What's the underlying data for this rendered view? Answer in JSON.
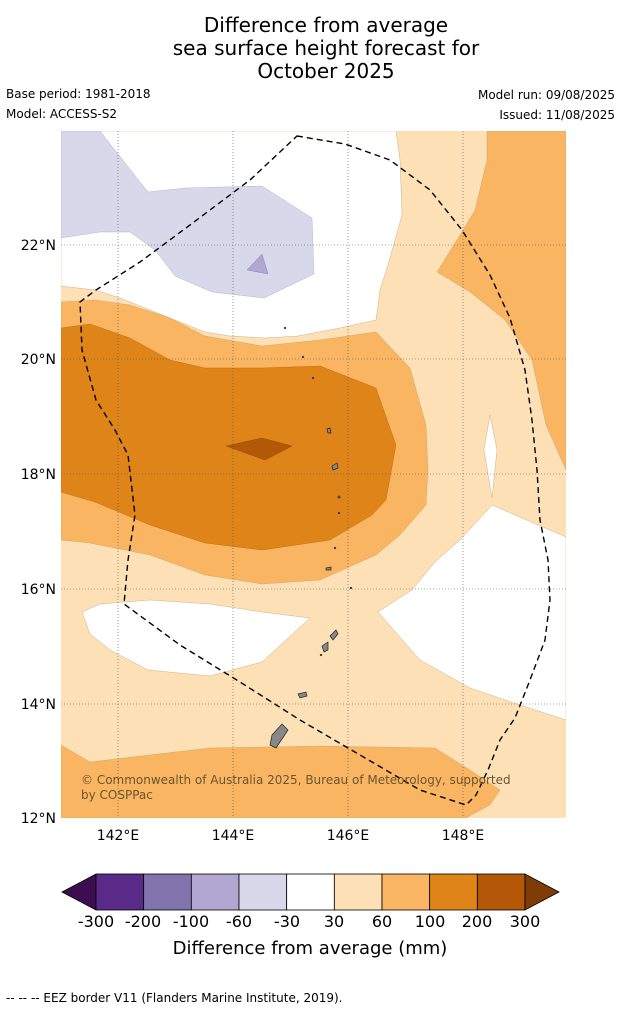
{
  "title": {
    "line1": "Difference from average",
    "line2": "sea surface height forecast for",
    "line3": "October 2025"
  },
  "meta": {
    "base_period": "Base period: 1981-2018",
    "model": "Model: ACCESS-S2",
    "model_run": "Model run: 09/08/2025",
    "issued": "Issued: 11/08/2025"
  },
  "map": {
    "lat_ticks": [
      "22°N",
      "20°N",
      "18°N",
      "16°N",
      "14°N",
      "12°N"
    ],
    "lon_ticks": [
      "142°E",
      "144°E",
      "146°E",
      "148°E"
    ],
    "extent": {
      "lon": [
        141,
        149.8
      ],
      "lat": [
        12,
        24
      ]
    },
    "copyright_line1": "© Commonwealth of Australia 2025, Bureau of Meteorology, supported",
    "copyright_line2": "by COSPPac"
  },
  "colorbar": {
    "ticks": [
      "-300",
      "-200",
      "-100",
      "-60",
      "-30",
      "30",
      "60",
      "100",
      "200",
      "300"
    ],
    "label": "Difference from average (mm)",
    "colors": [
      "#3b0f4f",
      "#5a2a89",
      "#8373ad",
      "#b0a8d0",
      "#d8d8ea",
      "#ffffff",
      "#fde0b5",
      "#f9b561",
      "#df8418",
      "#b35806",
      "#7f3b08"
    ]
  },
  "footnote": "--  --  -- EEZ border V11 (Flanders Marine Institute, 2019)."
}
